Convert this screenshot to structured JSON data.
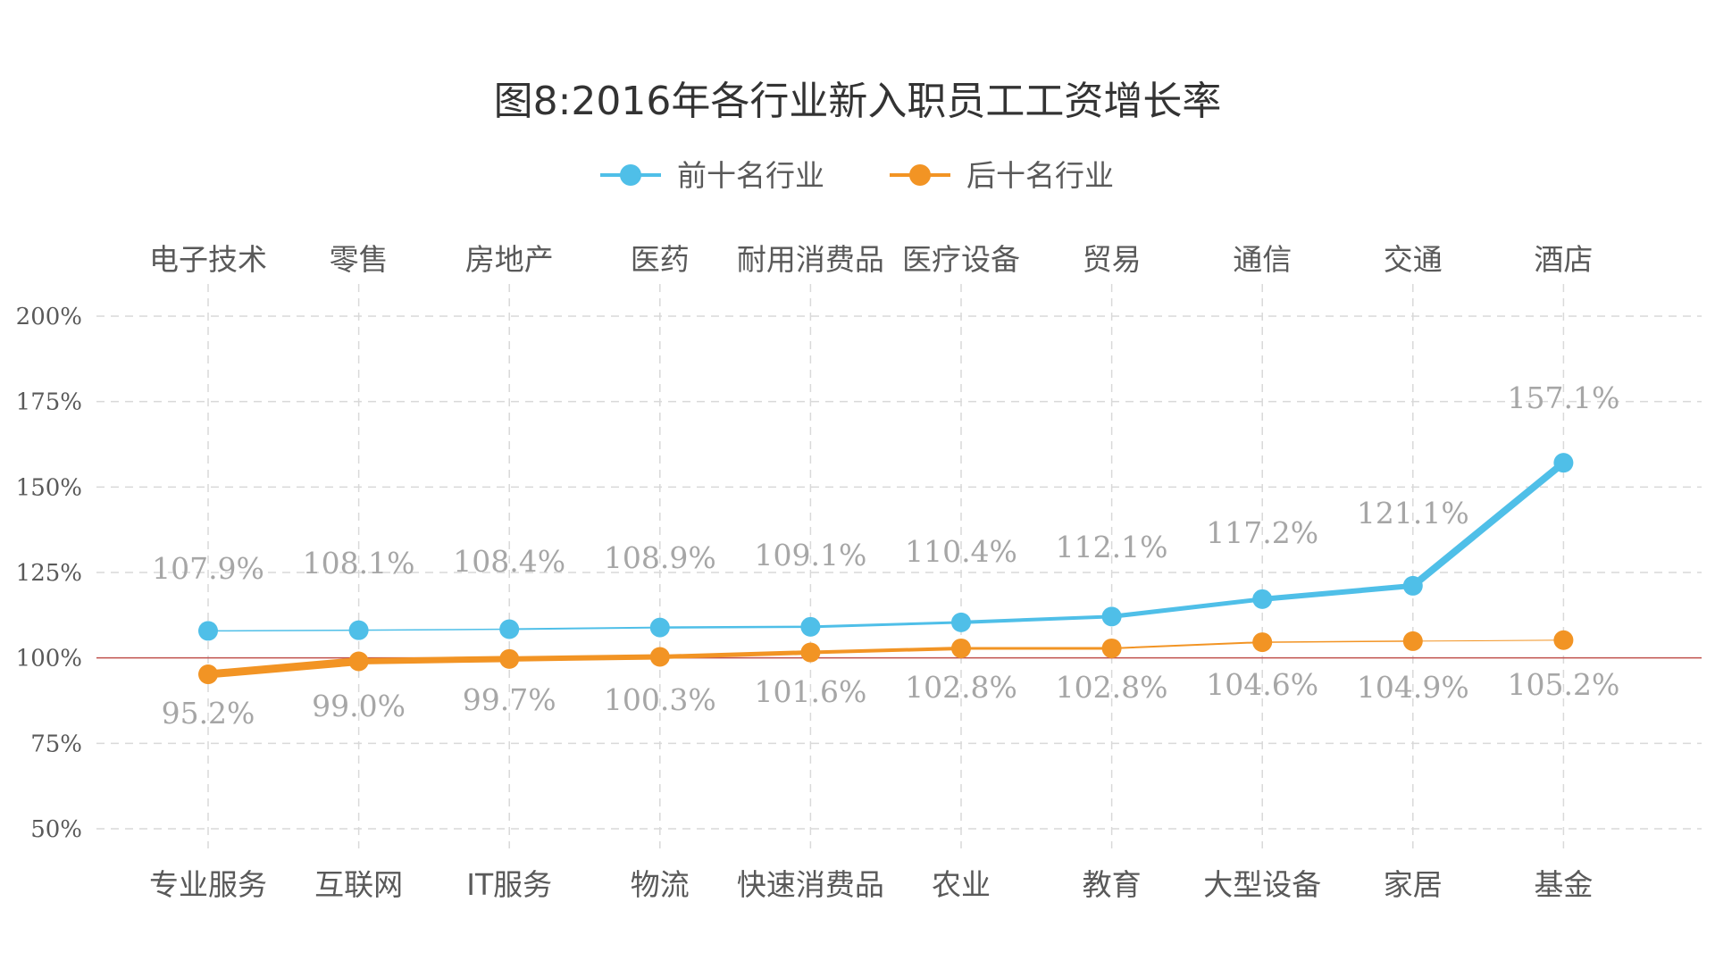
{
  "chart_data": {
    "type": "line",
    "title": "图8:2016年各行业新入职员工工资增长率",
    "ylim": [
      50,
      200
    ],
    "yticks": [
      "50%",
      "75%",
      "100%",
      "125%",
      "150%",
      "175%",
      "200%"
    ],
    "ytick_values": [
      50,
      75,
      100,
      125,
      150,
      175,
      200
    ],
    "reference_line": 100,
    "grid": true,
    "legend_position": "top",
    "x_top_labels": [
      "电子技术",
      "零售",
      "房地产",
      "医药",
      "耐用消费品",
      "医疗设备",
      "贸易",
      "通信",
      "交通",
      "酒店"
    ],
    "x_bottom_labels": [
      "专业服务",
      "互联网",
      "IT服务",
      "物流",
      "快速消费品",
      "农业",
      "教育",
      "大型设备",
      "家居",
      "基金"
    ],
    "series": [
      {
        "name": "前十名行业",
        "color": "#4fbfe8",
        "categories": [
          "电子技术",
          "零售",
          "房地产",
          "医药",
          "耐用消费品",
          "医疗设备",
          "贸易",
          "通信",
          "交通",
          "酒店"
        ],
        "values": [
          107.9,
          108.1,
          108.4,
          108.9,
          109.1,
          110.4,
          112.1,
          117.2,
          121.1,
          157.1
        ],
        "labels": [
          "107.9%",
          "108.1%",
          "108.4%",
          "108.9%",
          "109.1%",
          "110.4%",
          "112.1%",
          "117.2%",
          "121.1%",
          "157.1%"
        ]
      },
      {
        "name": "后十名行业",
        "color": "#f29424",
        "categories": [
          "专业服务",
          "互联网",
          "IT服务",
          "物流",
          "快速消费品",
          "农业",
          "教育",
          "大型设备",
          "家居",
          "基金"
        ],
        "values": [
          95.2,
          99.0,
          99.7,
          100.3,
          101.6,
          102.8,
          102.8,
          104.6,
          104.9,
          105.2
        ],
        "labels": [
          "95.2%",
          "99.0%",
          "99.7%",
          "100.3%",
          "101.6%",
          "102.8%",
          "102.8%",
          "104.6%",
          "104.9%",
          "105.2%"
        ]
      }
    ],
    "baseline_color": "#c0504d",
    "grid_color": "#d9d9d9"
  }
}
